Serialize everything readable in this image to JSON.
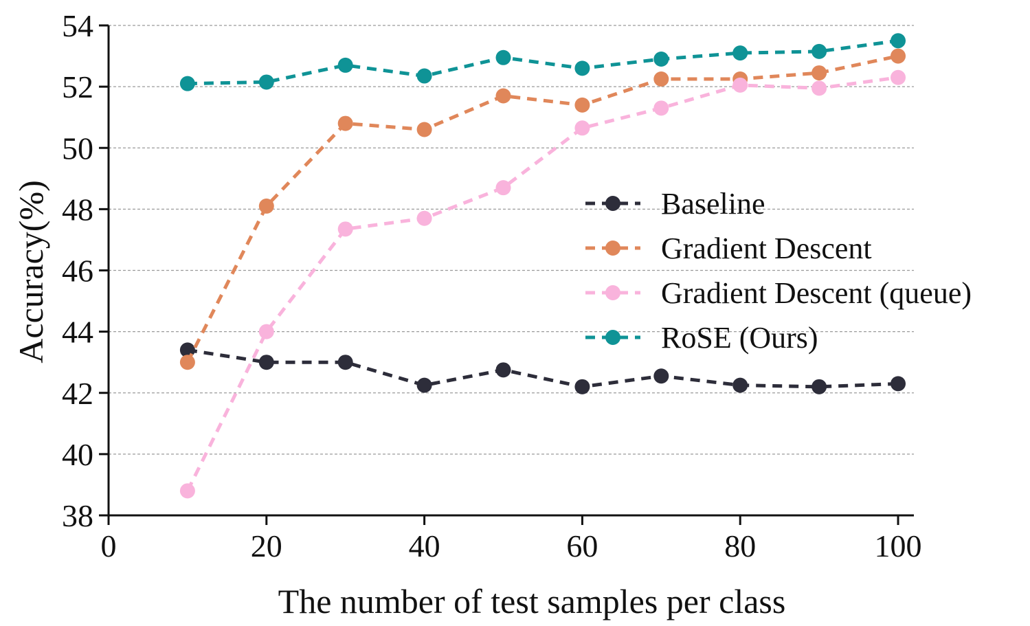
{
  "chart_data": {
    "type": "line",
    "title": "",
    "xlabel": "The number of test samples per class",
    "ylabel": "Accuracy(%)",
    "xlim": [
      0,
      102
    ],
    "ylim": [
      38,
      54
    ],
    "xticks": [
      0,
      20,
      40,
      60,
      80,
      100
    ],
    "yticks": [
      38,
      40,
      42,
      44,
      46,
      48,
      50,
      52,
      54
    ],
    "grid": "horizontal-dashed",
    "legend_position": "center-right",
    "x": [
      10,
      20,
      30,
      40,
      50,
      60,
      70,
      80,
      90,
      100
    ],
    "series": [
      {
        "name": "Baseline",
        "color": "#2d2d3a",
        "marker": "circle",
        "linestyle": "dashed",
        "values": [
          43.4,
          43.0,
          43.0,
          42.25,
          42.75,
          42.2,
          42.55,
          42.25,
          42.2,
          42.3
        ]
      },
      {
        "name": "Gradient Descent",
        "color": "#e0875a",
        "marker": "circle",
        "linestyle": "dashed",
        "values": [
          43.0,
          48.1,
          50.8,
          50.6,
          51.7,
          51.4,
          52.25,
          52.25,
          52.45,
          53.0
        ]
      },
      {
        "name": "Gradient Descent (queue)",
        "color": "#f9b3dc",
        "marker": "circle",
        "linestyle": "dashed",
        "values": [
          38.8,
          44.0,
          47.35,
          47.7,
          48.7,
          50.65,
          51.3,
          52.05,
          51.95,
          52.3
        ]
      },
      {
        "name": "RoSE (Ours)",
        "color": "#0f9396",
        "marker": "circle",
        "linestyle": "dashed",
        "values": [
          52.1,
          52.15,
          52.7,
          52.35,
          52.95,
          52.6,
          52.9,
          53.1,
          53.15,
          53.5
        ]
      }
    ]
  }
}
